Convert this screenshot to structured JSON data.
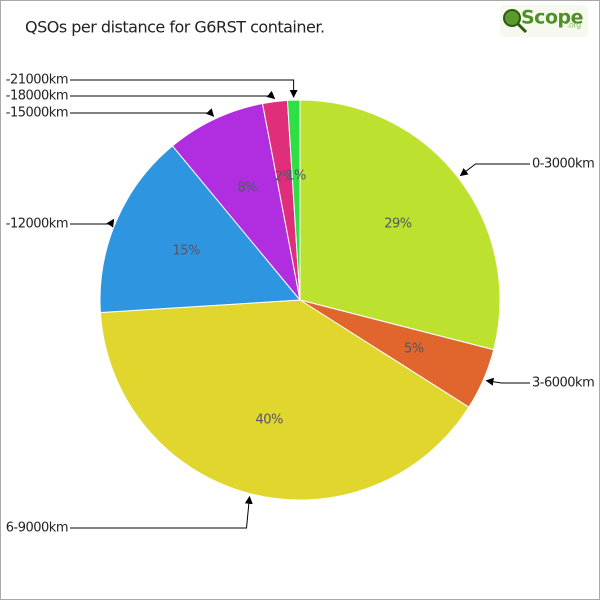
{
  "chart_data": {
    "type": "pie",
    "title": "QSOs per distance for G6RST container.",
    "logo": {
      "text": "Scope",
      "suffix": ".org"
    },
    "categories": [
      "0-3000km",
      "3-6000km",
      "6-9000km",
      "-12000km",
      "-15000km",
      "-18000km",
      "-21000km"
    ],
    "values": [
      29,
      5,
      40,
      15,
      8,
      2,
      1
    ],
    "value_labels": [
      "29%",
      "5%",
      "40%",
      "15%",
      "8%",
      "2%",
      "1%"
    ],
    "colors": [
      "#bce22f",
      "#e0662e",
      "#e0d62e",
      "#2e96e0",
      "#b02ee0",
      "#e02e7a",
      "#2ee046"
    ]
  }
}
